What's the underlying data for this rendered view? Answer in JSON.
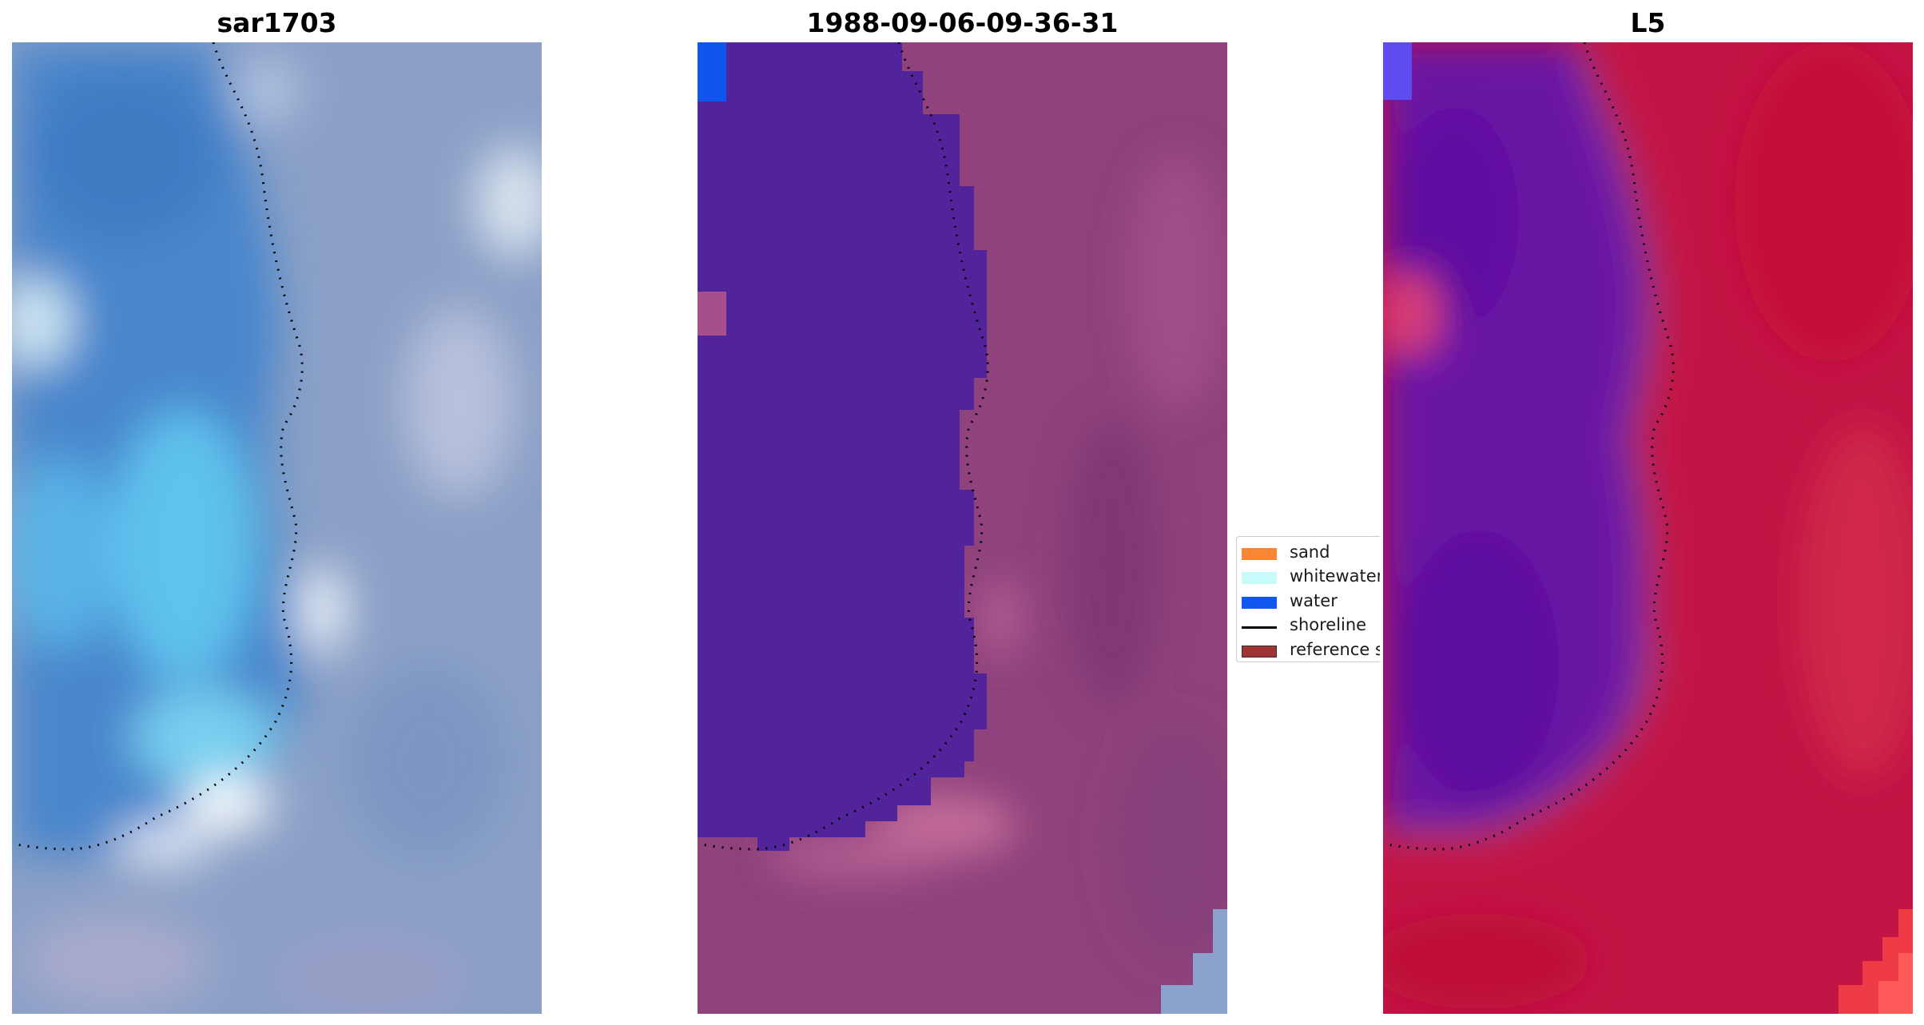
{
  "titles": {
    "left": "sar1703",
    "middle": "1988-09-06-09-36-31",
    "right": "L5"
  },
  "legend": {
    "items": [
      {
        "label": "sand",
        "color": "#fa8532",
        "kind": "patch"
      },
      {
        "label": "whitewater",
        "color": "#c8fcfa",
        "kind": "patch"
      },
      {
        "label": "water",
        "color": "#1058f0",
        "kind": "patch"
      },
      {
        "label": "shoreline",
        "color": "#000000",
        "kind": "line"
      },
      {
        "label": "reference s",
        "color": "#a03434",
        "kind": "patch-outlined"
      }
    ]
  },
  "colors": {
    "water_class": "#5325a0",
    "land_class": "#90437e",
    "water_index": "#6b17a4",
    "land_index": "#c61042",
    "rgb_water": "#4a8fd4",
    "rgb_land": "#8aa2c8"
  }
}
